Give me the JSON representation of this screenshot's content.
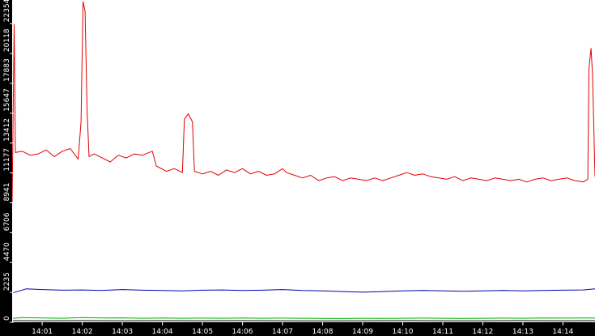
{
  "chart_data": {
    "type": "line",
    "title": "",
    "xlabel": "",
    "ylabel": "",
    "ylim": [
      0,
      24000
    ],
    "yticks": [
      "0",
      "2235",
      "4470",
      "6706",
      "8941",
      "11177",
      "13412",
      "15647",
      "17883",
      "20118",
      "22354"
    ],
    "ytick_values": [
      0,
      2235,
      4470,
      6706,
      8941,
      11177,
      13412,
      15647,
      17883,
      20118,
      22354
    ],
    "xticks": [
      "14:01",
      "14:02",
      "14:03",
      "14:04",
      "14:05",
      "14:06",
      "14:07",
      "14:08",
      "14:09",
      "14:10",
      "14:11",
      "14:12",
      "14:13",
      "14:14"
    ],
    "xtick_values": [
      1.0,
      2.0,
      3.0,
      4.0,
      5.0,
      6.0,
      7.0,
      8.0,
      9.0,
      10.0,
      11.0,
      12.0,
      13.0,
      14.0
    ],
    "xlim": [
      0.25,
      14.8
    ],
    "grid": false,
    "legend": "none",
    "series": [
      {
        "color": "#e00000",
        "points": [
          [
            0.25,
            9000
          ],
          [
            0.3,
            22300
          ],
          [
            0.33,
            12700
          ],
          [
            0.5,
            12800
          ],
          [
            0.7,
            12500
          ],
          [
            0.9,
            12600
          ],
          [
            1.1,
            12900
          ],
          [
            1.3,
            12400
          ],
          [
            1.5,
            12800
          ],
          [
            1.7,
            13000
          ],
          [
            1.9,
            12200
          ],
          [
            1.97,
            15000
          ],
          [
            2.02,
            24000
          ],
          [
            2.07,
            23300
          ],
          [
            2.12,
            16000
          ],
          [
            2.17,
            12400
          ],
          [
            2.3,
            12600
          ],
          [
            2.5,
            12300
          ],
          [
            2.7,
            12000
          ],
          [
            2.9,
            12500
          ],
          [
            3.1,
            12300
          ],
          [
            3.3,
            12600
          ],
          [
            3.5,
            12500
          ],
          [
            3.75,
            12800
          ],
          [
            3.85,
            11700
          ],
          [
            4.1,
            11300
          ],
          [
            4.3,
            11500
          ],
          [
            4.5,
            11200
          ],
          [
            4.55,
            15200
          ],
          [
            4.65,
            15600
          ],
          [
            4.75,
            15000
          ],
          [
            4.8,
            11300
          ],
          [
            5.0,
            11100
          ],
          [
            5.2,
            11300
          ],
          [
            5.4,
            11000
          ],
          [
            5.6,
            11400
          ],
          [
            5.8,
            11200
          ],
          [
            6.0,
            11500
          ],
          [
            6.2,
            11100
          ],
          [
            6.4,
            11300
          ],
          [
            6.6,
            11000
          ],
          [
            6.8,
            11100
          ],
          [
            7.0,
            11500
          ],
          [
            7.1,
            11200
          ],
          [
            7.3,
            11000
          ],
          [
            7.5,
            10800
          ],
          [
            7.7,
            11000
          ],
          [
            7.9,
            10600
          ],
          [
            8.1,
            10800
          ],
          [
            8.3,
            10900
          ],
          [
            8.5,
            10600
          ],
          [
            8.7,
            10800
          ],
          [
            8.9,
            10700
          ],
          [
            9.1,
            10600
          ],
          [
            9.3,
            10800
          ],
          [
            9.5,
            10600
          ],
          [
            9.7,
            10800
          ],
          [
            9.9,
            11000
          ],
          [
            10.1,
            11200
          ],
          [
            10.3,
            11000
          ],
          [
            10.5,
            11100
          ],
          [
            10.7,
            10900
          ],
          [
            10.9,
            10800
          ],
          [
            11.1,
            10700
          ],
          [
            11.3,
            10900
          ],
          [
            11.5,
            10600
          ],
          [
            11.7,
            10800
          ],
          [
            11.9,
            10700
          ],
          [
            12.1,
            10600
          ],
          [
            12.3,
            10800
          ],
          [
            12.5,
            10700
          ],
          [
            12.7,
            10600
          ],
          [
            12.9,
            10700
          ],
          [
            13.1,
            10500
          ],
          [
            13.3,
            10700
          ],
          [
            13.5,
            10800
          ],
          [
            13.7,
            10600
          ],
          [
            13.9,
            10700
          ],
          [
            14.1,
            10800
          ],
          [
            14.3,
            10600
          ],
          [
            14.5,
            10500
          ],
          [
            14.62,
            10700
          ],
          [
            14.65,
            19000
          ],
          [
            14.7,
            20500
          ],
          [
            14.74,
            18500
          ],
          [
            14.8,
            10900
          ]
        ]
      },
      {
        "color": "#0000b0",
        "points": [
          [
            0.27,
            2200
          ],
          [
            0.6,
            2500
          ],
          [
            1.0,
            2450
          ],
          [
            1.5,
            2400
          ],
          [
            2.0,
            2420
          ],
          [
            2.5,
            2380
          ],
          [
            3.0,
            2450
          ],
          [
            3.5,
            2400
          ],
          [
            4.0,
            2380
          ],
          [
            4.5,
            2350
          ],
          [
            5.0,
            2400
          ],
          [
            5.5,
            2420
          ],
          [
            6.0,
            2380
          ],
          [
            6.5,
            2400
          ],
          [
            7.0,
            2450
          ],
          [
            7.5,
            2380
          ],
          [
            8.0,
            2350
          ],
          [
            8.5,
            2300
          ],
          [
            9.0,
            2250
          ],
          [
            9.5,
            2300
          ],
          [
            10.0,
            2350
          ],
          [
            10.5,
            2380
          ],
          [
            11.0,
            2350
          ],
          [
            11.5,
            2320
          ],
          [
            12.0,
            2350
          ],
          [
            12.5,
            2380
          ],
          [
            13.0,
            2350
          ],
          [
            13.5,
            2380
          ],
          [
            14.0,
            2400
          ],
          [
            14.5,
            2420
          ],
          [
            14.8,
            2500
          ]
        ]
      },
      {
        "color": "#00b000",
        "points": [
          [
            0.27,
            300
          ],
          [
            0.5,
            350
          ],
          [
            1.0,
            320
          ],
          [
            1.5,
            300
          ],
          [
            2.0,
            350
          ],
          [
            2.5,
            320
          ],
          [
            3.0,
            330
          ],
          [
            3.5,
            300
          ],
          [
            4.0,
            320
          ],
          [
            4.5,
            300
          ],
          [
            5.0,
            310
          ],
          [
            5.5,
            300
          ],
          [
            6.0,
            320
          ],
          [
            6.5,
            300
          ],
          [
            7.0,
            310
          ],
          [
            7.5,
            300
          ],
          [
            8.0,
            290
          ],
          [
            8.5,
            280
          ],
          [
            9.0,
            300
          ],
          [
            9.5,
            290
          ],
          [
            10.0,
            300
          ],
          [
            10.5,
            310
          ],
          [
            11.0,
            300
          ],
          [
            11.5,
            290
          ],
          [
            12.0,
            300
          ],
          [
            12.5,
            310
          ],
          [
            13.0,
            300
          ],
          [
            13.5,
            320
          ],
          [
            14.0,
            310
          ],
          [
            14.8,
            320
          ]
        ]
      },
      {
        "color": "#000000",
        "points": [
          [
            0.27,
            120
          ],
          [
            1.0,
            110
          ],
          [
            2.0,
            120
          ],
          [
            3.0,
            110
          ],
          [
            4.0,
            120
          ],
          [
            5.0,
            110
          ],
          [
            6.0,
            120
          ],
          [
            7.0,
            110
          ],
          [
            8.0,
            100
          ],
          [
            9.0,
            110
          ],
          [
            10.0,
            120
          ],
          [
            11.0,
            110
          ],
          [
            12.0,
            110
          ],
          [
            13.0,
            120
          ],
          [
            14.0,
            110
          ],
          [
            14.8,
            120
          ]
        ]
      }
    ]
  }
}
